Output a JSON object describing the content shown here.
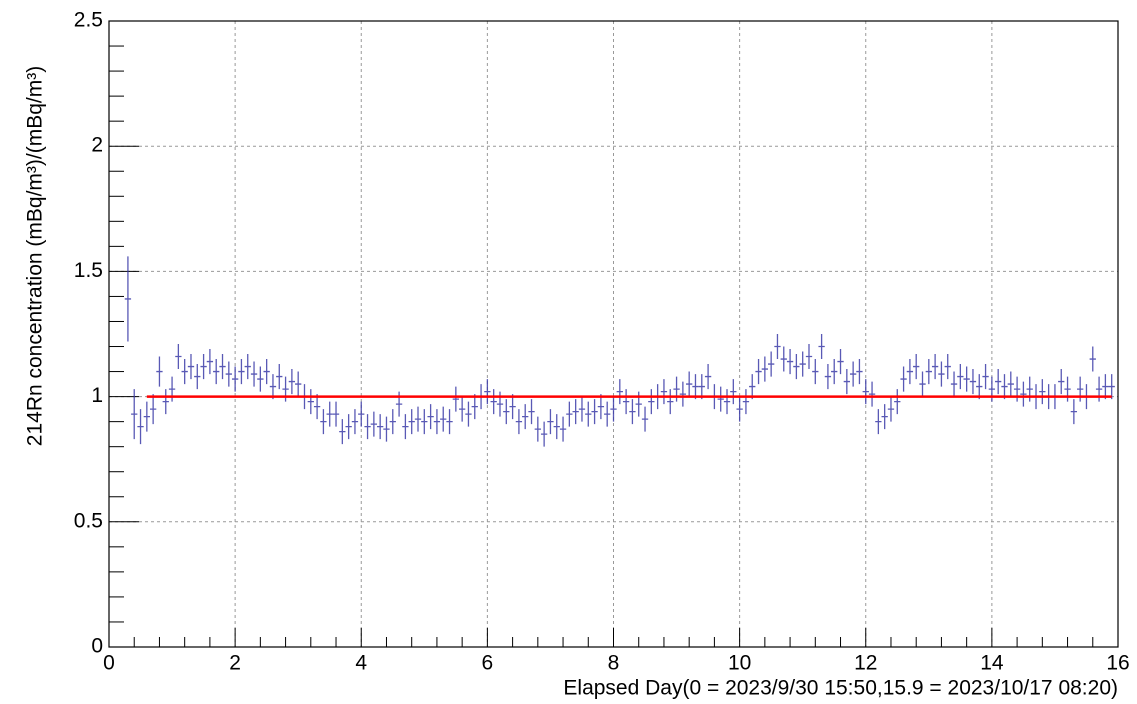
{
  "chart_data": {
    "type": "errorbar",
    "xlabel": "Elapsed Day(0 = 2023/9/30 15:50,15.9 = 2023/10/17 08:20)",
    "ylabel": "214Rn concentration (mBq/m³)/(mBq/m³)",
    "xlim": [
      0,
      16
    ],
    "ylim": [
      0,
      2.5
    ],
    "xticks": [
      0,
      2,
      4,
      6,
      8,
      10,
      12,
      14,
      16
    ],
    "yticks": [
      0,
      0.5,
      1,
      1.5,
      2,
      2.5
    ],
    "xminorticks": [
      0.4,
      0.8,
      1.2,
      1.6,
      2.4,
      2.8,
      3.2,
      3.6,
      4.4,
      4.8,
      5.2,
      5.6,
      6.4,
      6.8,
      7.2,
      7.6,
      8.4,
      8.8,
      9.2,
      9.6,
      10.4,
      10.8,
      11.2,
      11.6,
      12.4,
      12.8,
      13.2,
      13.6,
      14.4,
      14.8,
      15.2,
      15.6
    ],
    "yminorticks": [
      0.1,
      0.2,
      0.3,
      0.4,
      0.6,
      0.7,
      0.8,
      0.9,
      1.1,
      1.2,
      1.3,
      1.4,
      1.6,
      1.7,
      1.8,
      1.9,
      2.1,
      2.2,
      2.3,
      2.4
    ],
    "grid": true,
    "xerr": 0.05,
    "x": [
      0.3,
      0.4,
      0.5,
      0.6,
      0.7,
      0.8,
      0.9,
      1.0,
      1.1,
      1.2,
      1.3,
      1.4,
      1.5,
      1.6,
      1.7,
      1.8,
      1.9,
      2.0,
      2.1,
      2.2,
      2.3,
      2.4,
      2.5,
      2.6,
      2.7,
      2.8,
      2.9,
      3.0,
      3.1,
      3.2,
      3.3,
      3.4,
      3.5,
      3.6,
      3.7,
      3.8,
      3.9,
      4.0,
      4.1,
      4.2,
      4.3,
      4.4,
      4.5,
      4.6,
      4.7,
      4.8,
      4.9,
      5.0,
      5.1,
      5.2,
      5.3,
      5.4,
      5.5,
      5.6,
      5.7,
      5.8,
      5.9,
      6.0,
      6.1,
      6.2,
      6.3,
      6.4,
      6.5,
      6.6,
      6.7,
      6.8,
      6.9,
      7.0,
      7.1,
      7.2,
      7.3,
      7.4,
      7.5,
      7.6,
      7.7,
      7.8,
      7.9,
      8.0,
      8.1,
      8.2,
      8.3,
      8.4,
      8.5,
      8.6,
      8.7,
      8.8,
      8.9,
      9.0,
      9.1,
      9.2,
      9.3,
      9.4,
      9.5,
      9.6,
      9.7,
      9.8,
      9.9,
      10.0,
      10.1,
      10.2,
      10.3,
      10.4,
      10.5,
      10.6,
      10.7,
      10.8,
      10.9,
      11.0,
      11.1,
      11.2,
      11.3,
      11.4,
      11.5,
      11.6,
      11.7,
      11.8,
      11.9,
      12.0,
      12.1,
      12.2,
      12.3,
      12.4,
      12.5,
      12.6,
      12.7,
      12.8,
      12.9,
      13.0,
      13.1,
      13.2,
      13.3,
      13.4,
      13.5,
      13.6,
      13.7,
      13.8,
      13.9,
      14.0,
      14.1,
      14.2,
      14.3,
      14.4,
      14.5,
      14.6,
      14.7,
      14.8,
      14.9,
      15.0,
      15.1,
      15.2,
      15.3,
      15.4,
      15.5,
      15.6,
      15.7,
      15.8,
      15.9
    ],
    "series": [
      {
        "color": "#3c3ca8",
        "values": [
          1.39,
          0.93,
          0.88,
          0.92,
          0.95,
          1.1,
          0.98,
          1.03,
          1.16,
          1.1,
          1.12,
          1.08,
          1.12,
          1.14,
          1.1,
          1.12,
          1.09,
          1.07,
          1.1,
          1.12,
          1.09,
          1.07,
          1.1,
          1.04,
          1.08,
          1.03,
          1.06,
          1.05,
          1.0,
          0.98,
          0.96,
          0.9,
          0.93,
          0.93,
          0.86,
          0.88,
          0.9,
          0.93,
          0.88,
          0.89,
          0.88,
          0.87,
          0.9,
          0.97,
          0.88,
          0.9,
          0.91,
          0.9,
          0.92,
          0.9,
          0.91,
          0.9,
          0.99,
          0.95,
          0.93,
          0.96,
          1.0,
          1.02,
          0.98,
          0.97,
          0.94,
          0.96,
          0.9,
          0.92,
          0.94,
          0.87,
          0.85,
          0.9,
          0.88,
          0.87,
          0.93,
          0.94,
          0.95,
          0.93,
          0.94,
          0.96,
          0.93,
          0.95,
          1.02,
          0.98,
          0.94,
          0.97,
          0.91,
          0.98,
          1.0,
          1.02,
          0.98,
          1.03,
          1.01,
          1.05,
          1.04,
          1.04,
          1.08,
          1.0,
          0.99,
          0.98,
          1.02,
          0.95,
          0.98,
          1.04,
          1.1,
          1.11,
          1.13,
          1.2,
          1.15,
          1.14,
          1.12,
          1.13,
          1.16,
          1.1,
          1.2,
          1.08,
          1.1,
          1.14,
          1.06,
          1.09,
          1.1,
          1.02,
          1.01,
          0.9,
          0.92,
          0.95,
          0.98,
          1.07,
          1.1,
          1.12,
          1.05,
          1.1,
          1.12,
          1.09,
          1.12,
          1.05,
          1.08,
          1.07,
          1.06,
          1.04,
          1.08,
          1.03,
          1.06,
          1.04,
          1.05,
          1.03,
          1.01,
          1.03,
          1.0,
          1.02,
          1.0,
          1.0,
          1.06,
          1.03,
          0.94,
          1.03,
          1.0,
          1.15,
          1.03,
          1.04,
          1.04
        ],
        "errors": [
          0.17,
          0.1,
          0.07,
          0.06,
          0.06,
          0.06,
          0.05,
          0.05,
          0.05,
          0.05,
          0.05,
          0.05,
          0.05,
          0.05,
          0.05,
          0.05,
          0.05,
          0.05,
          0.05,
          0.05,
          0.05,
          0.05,
          0.05,
          0.05,
          0.05,
          0.05,
          0.05,
          0.05,
          0.05,
          0.05,
          0.05,
          0.05,
          0.05,
          0.05,
          0.05,
          0.05,
          0.05,
          0.05,
          0.05,
          0.05,
          0.05,
          0.05,
          0.05,
          0.05,
          0.05,
          0.05,
          0.05,
          0.05,
          0.05,
          0.05,
          0.05,
          0.05,
          0.05,
          0.05,
          0.05,
          0.05,
          0.05,
          0.05,
          0.05,
          0.05,
          0.05,
          0.05,
          0.05,
          0.05,
          0.05,
          0.05,
          0.05,
          0.05,
          0.05,
          0.05,
          0.05,
          0.05,
          0.05,
          0.05,
          0.05,
          0.05,
          0.05,
          0.05,
          0.05,
          0.05,
          0.05,
          0.05,
          0.05,
          0.05,
          0.05,
          0.05,
          0.05,
          0.05,
          0.05,
          0.05,
          0.05,
          0.05,
          0.05,
          0.05,
          0.05,
          0.05,
          0.05,
          0.05,
          0.05,
          0.05,
          0.05,
          0.05,
          0.05,
          0.05,
          0.05,
          0.05,
          0.05,
          0.05,
          0.05,
          0.05,
          0.05,
          0.05,
          0.05,
          0.05,
          0.05,
          0.05,
          0.05,
          0.05,
          0.05,
          0.05,
          0.05,
          0.05,
          0.05,
          0.05,
          0.05,
          0.05,
          0.05,
          0.05,
          0.05,
          0.05,
          0.05,
          0.05,
          0.05,
          0.05,
          0.05,
          0.05,
          0.05,
          0.05,
          0.05,
          0.05,
          0.05,
          0.05,
          0.05,
          0.05,
          0.05,
          0.05,
          0.05,
          0.05,
          0.05,
          0.05,
          0.05,
          0.05,
          0.05,
          0.05,
          0.05,
          0.05,
          0.05
        ]
      }
    ],
    "reference_line": {
      "y": 1,
      "x": [
        0.6,
        15.9
      ],
      "color": "#ff0000"
    }
  }
}
